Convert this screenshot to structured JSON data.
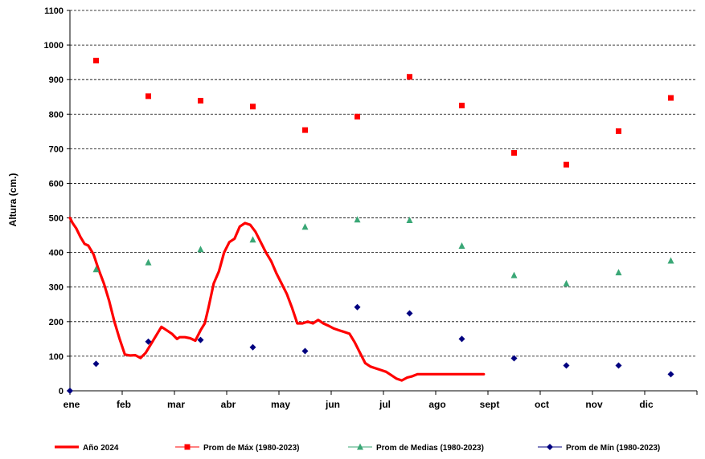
{
  "chart_data": {
    "type": "line",
    "title": "",
    "xlabel": "",
    "ylabel": "Altura (cm.)",
    "ylim": [
      0,
      1100
    ],
    "yticks": [
      0,
      100,
      200,
      300,
      400,
      500,
      600,
      700,
      800,
      900,
      1000,
      1100
    ],
    "xlim": [
      0,
      12
    ],
    "month_labels": [
      "ene",
      "feb",
      "mar",
      "abr",
      "may",
      "jun",
      "jul",
      "ago",
      "sept",
      "oct",
      "nov",
      "dic"
    ],
    "grid": "horizontal-dashed",
    "legend_position": "bottom",
    "series": [
      {
        "name": "Año 2024",
        "style": "line",
        "color": "#ff0000",
        "x": [
          0.0,
          0.05,
          0.12,
          0.2,
          0.28,
          0.35,
          0.45,
          0.55,
          0.65,
          0.75,
          0.85,
          0.95,
          1.05,
          1.15,
          1.25,
          1.35,
          1.45,
          1.55,
          1.65,
          1.75,
          1.85,
          1.95,
          2.05,
          2.1,
          2.2,
          2.3,
          2.4,
          2.5,
          2.58,
          2.65,
          2.75,
          2.85,
          2.95,
          3.05,
          3.15,
          3.25,
          3.35,
          3.45,
          3.55,
          3.65,
          3.75,
          3.85,
          3.95,
          4.05,
          4.15,
          4.25,
          4.35,
          4.45,
          4.55,
          4.65,
          4.75,
          4.85,
          4.95,
          5.05,
          5.15,
          5.25,
          5.35,
          5.45,
          5.55,
          5.65,
          5.75,
          5.85,
          5.95,
          6.05,
          6.15,
          6.25,
          6.35,
          6.45,
          6.55,
          6.65,
          6.75,
          6.85,
          6.95,
          7.05,
          7.15,
          7.25,
          7.35,
          7.45,
          7.55,
          7.65,
          7.75,
          7.85,
          7.92
        ],
        "values": [
          500,
          485,
          470,
          445,
          425,
          420,
          395,
          350,
          310,
          260,
          200,
          150,
          105,
          102,
          103,
          95,
          110,
          135,
          160,
          185,
          175,
          165,
          150,
          155,
          155,
          152,
          145,
          175,
          195,
          240,
          310,
          345,
          400,
          430,
          440,
          475,
          485,
          480,
          460,
          430,
          400,
          375,
          340,
          310,
          280,
          240,
          195,
          195,
          200,
          195,
          205,
          195,
          188,
          180,
          175,
          170,
          165,
          140,
          110,
          80,
          70,
          65,
          60,
          55,
          45,
          35,
          30,
          38,
          42,
          48,
          48,
          48,
          48,
          48,
          48,
          48,
          48,
          48,
          48,
          48,
          48,
          48,
          48
        ]
      },
      {
        "name": "Prom de Máx (1980-2023)",
        "style": "marker",
        "marker": "square",
        "color": "#ff0000",
        "x": [
          0.5,
          1.5,
          2.5,
          3.5,
          4.5,
          5.5,
          6.5,
          7.5,
          8.5,
          9.5,
          10.5,
          11.5
        ],
        "values": [
          955,
          852,
          839,
          822,
          754,
          793,
          908,
          825,
          688,
          654,
          751,
          847
        ]
      },
      {
        "name": "Prom de Medias (1980-2023)",
        "style": "marker",
        "marker": "triangle",
        "color": "#3aa776",
        "x": [
          0.5,
          1.5,
          2.5,
          3.5,
          4.5,
          5.5,
          6.5,
          7.5,
          8.5,
          9.5,
          10.5,
          11.5
        ],
        "values": [
          351,
          371,
          409,
          437,
          474,
          495,
          493,
          419,
          334,
          310,
          342,
          376
        ]
      },
      {
        "name": "Prom de Mín (1980-2023)",
        "style": "marker",
        "marker": "diamond",
        "color": "#000080",
        "x": [
          0.0,
          0.5,
          1.5,
          2.5,
          3.5,
          4.5,
          5.5,
          6.5,
          7.5,
          8.5,
          9.5,
          10.5,
          11.5
        ],
        "values": [
          0,
          78,
          142,
          147,
          126,
          115,
          242,
          224,
          150,
          94,
          73,
          73,
          48
        ]
      }
    ]
  }
}
